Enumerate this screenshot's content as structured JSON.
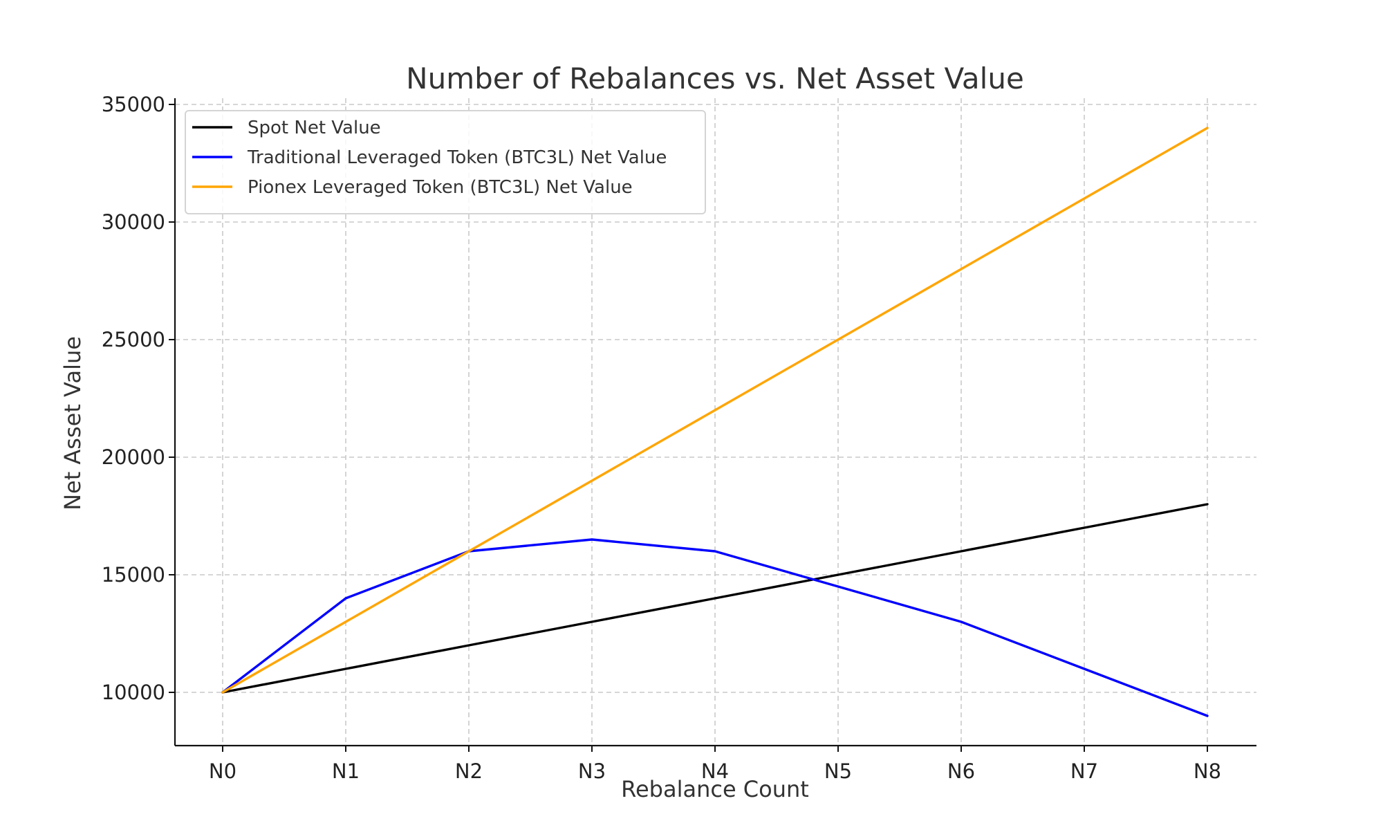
{
  "chart_data": {
    "type": "line",
    "title": "Number of Rebalances vs. Net Asset Value",
    "xlabel": "Rebalance Count",
    "ylabel": "Net Asset Value",
    "categories": [
      "N0",
      "N1",
      "N2",
      "N3",
      "N4",
      "N5",
      "N6",
      "N7",
      "N8"
    ],
    "ylim": [
      7800,
      35000
    ],
    "yticks": [
      10000,
      15000,
      20000,
      25000,
      30000,
      35000
    ],
    "grid": true,
    "legend_position": "top-left",
    "series": [
      {
        "name": "Spot Net Value",
        "color": "#000000",
        "values": [
          10000,
          11000,
          12000,
          13000,
          14000,
          15000,
          16000,
          17000,
          18000
        ]
      },
      {
        "name": "Traditional Leveraged Token (BTC3L) Net Value",
        "color": "#0000ff",
        "values": [
          10000,
          14000,
          16000,
          16500,
          16000,
          14500,
          13000,
          11000,
          9000
        ]
      },
      {
        "name": "Pionex Leveraged Token (BTC3L) Net Value",
        "color": "#ffa500",
        "values": [
          10000,
          13000,
          16000,
          19000,
          22000,
          25000,
          28000,
          31000,
          34000
        ]
      }
    ]
  }
}
